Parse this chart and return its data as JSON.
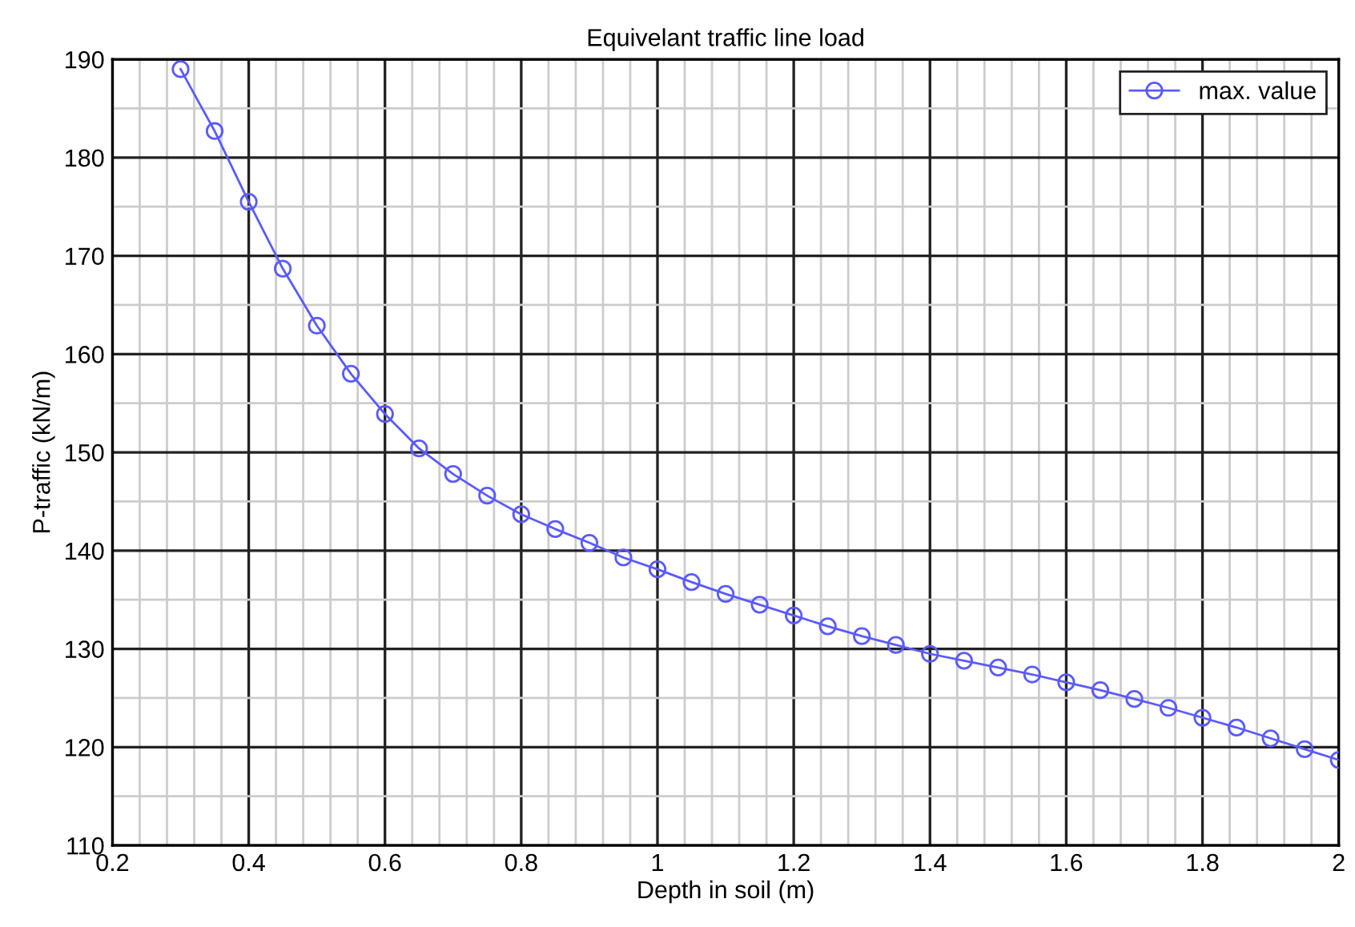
{
  "chart_data": {
    "type": "line",
    "title": "Equivelant traffic line load",
    "xlabel": "Depth in soil (m)",
    "ylabel": "P-traffic (kN/m)",
    "x": [
      0.3,
      0.35,
      0.4,
      0.45,
      0.5,
      0.55,
      0.6,
      0.65,
      0.7,
      0.75,
      0.8,
      0.85,
      0.9,
      0.95,
      1.0,
      1.05,
      1.1,
      1.15,
      1.2,
      1.25,
      1.3,
      1.35,
      1.4,
      1.45,
      1.5,
      1.55,
      1.6,
      1.65,
      1.7,
      1.75,
      1.8,
      1.85,
      1.9,
      1.95,
      2.0
    ],
    "series": [
      {
        "name": "max. value",
        "color": "#5a5aff",
        "values": [
          189.0,
          182.7,
          175.5,
          168.7,
          162.9,
          158.0,
          153.9,
          150.4,
          147.8,
          145.6,
          143.7,
          142.2,
          140.8,
          139.3,
          138.1,
          136.8,
          135.6,
          134.5,
          133.4,
          132.3,
          131.3,
          130.4,
          129.5,
          128.8,
          128.1,
          127.4,
          126.6,
          125.8,
          124.9,
          124.0,
          123.0,
          122.0,
          120.9,
          119.8,
          118.7
        ]
      }
    ],
    "xlim": [
      0.2,
      2.0
    ],
    "ylim": [
      110,
      190
    ],
    "xticks": [
      0.2,
      0.4,
      0.6,
      0.8,
      1,
      1.2,
      1.4,
      1.6,
      1.8,
      2
    ],
    "yticks": [
      110,
      120,
      130,
      140,
      150,
      160,
      170,
      180,
      190
    ],
    "grid": true,
    "legend": "top right",
    "marker": "circle",
    "line_style": "solid"
  }
}
